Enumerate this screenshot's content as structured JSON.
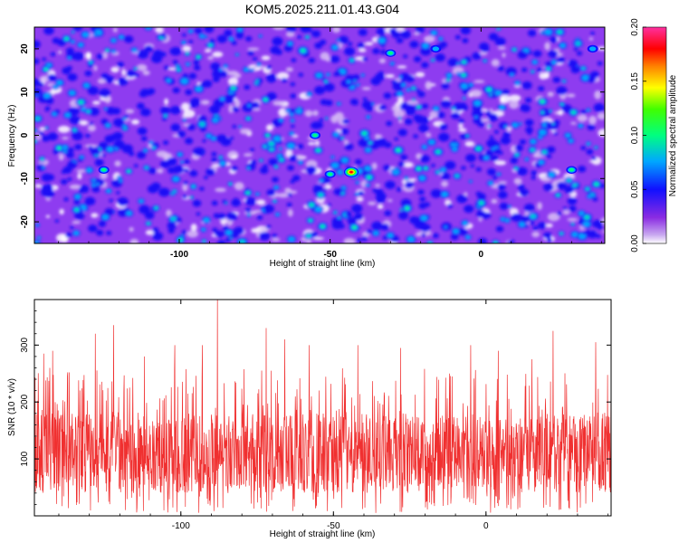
{
  "title": "KOM5.2025.211.01.43.G04",
  "chart_data": [
    {
      "type": "heatmap",
      "xlabel": "Height of straight line (km)",
      "ylabel": "Frequency (Hz)",
      "xlim": [
        -148,
        41
      ],
      "ylim": [
        -25,
        25
      ],
      "xticks": [
        -100,
        -50,
        0
      ],
      "xtick_labels": [
        "-100",
        "-50",
        "0"
      ],
      "yticks": [
        -20,
        -10,
        0,
        10,
        20
      ],
      "ytick_labels": [
        "-20",
        "-10",
        "0",
        "10",
        "20"
      ],
      "colorbar": {
        "label": "Normalized spectral amplitude",
        "range": [
          0,
          0.2
        ],
        "ticks": [
          0,
          0.05,
          0.1,
          0.15,
          0.2
        ],
        "tick_labels": [
          "0.00",
          "0.05",
          "0.10",
          "0.15",
          "0.20"
        ]
      },
      "peak": {
        "x": -43,
        "y": -8.5,
        "value": 0.19
      },
      "notable_blobs": [
        {
          "x": -125,
          "y": -8,
          "value": 0.1
        },
        {
          "x": -55,
          "y": 0,
          "value": 0.1
        },
        {
          "x": -50,
          "y": -9,
          "value": 0.11
        },
        {
          "x": -30,
          "y": 19,
          "value": 0.1
        },
        {
          "x": -15,
          "y": 20,
          "value": 0.09
        },
        {
          "x": 30,
          "y": -8,
          "value": 0.1
        },
        {
          "x": 37,
          "y": 20,
          "value": 0.09
        }
      ]
    },
    {
      "type": "line",
      "xlabel": "Height of straight line (km)",
      "ylabel": "SNR (10 * v/v)",
      "xlim": [
        -148,
        41
      ],
      "ylim": [
        0,
        380
      ],
      "xticks": [
        -100,
        -50,
        0
      ],
      "xtick_labels": [
        "-100",
        "-50",
        "0"
      ],
      "yticks": [
        100,
        200,
        300
      ],
      "ytick_labels": [
        "100",
        "200",
        "300"
      ],
      "series": [
        {
          "color": "#f03030",
          "typical_range": [
            40,
            180
          ],
          "mean": 110,
          "peaks": [
            {
              "x": -145,
              "y": 285
            },
            {
              "x": -142,
              "y": 290
            },
            {
              "x": -128,
              "y": 320
            },
            {
              "x": -122,
              "y": 335
            },
            {
              "x": -112,
              "y": 280
            },
            {
              "x": -102,
              "y": 300
            },
            {
              "x": -93,
              "y": 300
            },
            {
              "x": -88,
              "y": 380
            },
            {
              "x": -72,
              "y": 330
            },
            {
              "x": -66,
              "y": 310
            },
            {
              "x": -58,
              "y": 300
            },
            {
              "x": -42,
              "y": 300
            },
            {
              "x": -28,
              "y": 295
            },
            {
              "x": -12,
              "y": 250
            },
            {
              "x": -5,
              "y": 300
            },
            {
              "x": 4,
              "y": 290
            },
            {
              "x": 15,
              "y": 275
            },
            {
              "x": 22,
              "y": 325
            },
            {
              "x": 36,
              "y": 305
            },
            {
              "x": 41,
              "y": 250
            }
          ]
        }
      ]
    }
  ]
}
